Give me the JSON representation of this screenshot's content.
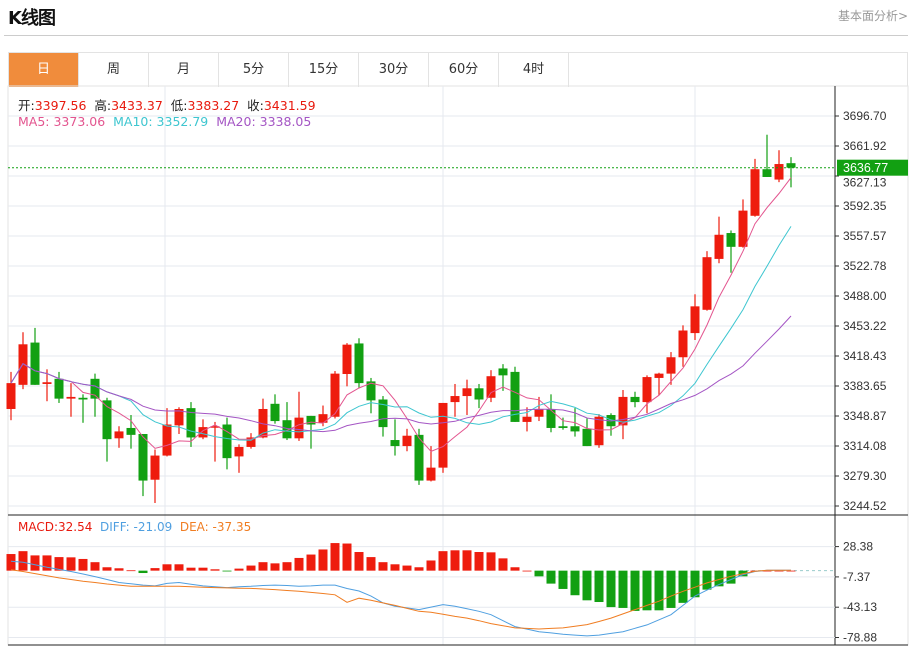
{
  "header": {
    "title": "K线图",
    "link": "基本面分析>"
  },
  "tabs": [
    {
      "label": "日",
      "active": true
    },
    {
      "label": "周"
    },
    {
      "label": "月"
    },
    {
      "label": "5分"
    },
    {
      "label": "15分"
    },
    {
      "label": "30分"
    },
    {
      "label": "60分"
    },
    {
      "label": "4时"
    }
  ],
  "ohlc_info": {
    "open_label": "开:",
    "open": "3397.56",
    "high_label": "高:",
    "high": "3433.37",
    "low_label": "低:",
    "low": "3383.27",
    "close_label": "收:",
    "close": "3431.59"
  },
  "ma_info": {
    "ma5": "MA5: 3373.06",
    "ma10": "MA10: 3352.79",
    "ma20": "MA20: 3338.05"
  },
  "macd_info": {
    "macd": "MACD:32.54",
    "diff": "DIFF: -21.09",
    "dea": "DEA: -37.35"
  },
  "colors": {
    "up": "#ee1c0e",
    "down": "#12a012",
    "ma5": "#e3558f",
    "ma10": "#3ec6d0",
    "ma20": "#a455c4",
    "diff": "#4f9fe0",
    "dea": "#f07d22",
    "accent": "#f08c3c"
  },
  "chart_data": [
    {
      "type": "candlestick",
      "price_axis_ticks": [
        "3696.70",
        "3661.92",
        "3627.13",
        "3592.35",
        "3557.57",
        "3522.78",
        "3488.00",
        "3453.22",
        "3418.43",
        "3383.65",
        "3348.87",
        "3314.08",
        "3279.30",
        "3244.52"
      ],
      "ylim": [
        3244.52,
        3696.7
      ],
      "grid": true,
      "last_price": "3636.77",
      "ohlc_fields": [
        "open",
        "close",
        "high",
        "low"
      ],
      "candles": [
        [
          3357,
          3387,
          3400,
          3344
        ],
        [
          3385,
          3432,
          3446,
          3380
        ],
        [
          3434,
          3385,
          3451,
          3385
        ],
        [
          3386,
          3388,
          3403,
          3366
        ],
        [
          3392,
          3369,
          3400,
          3364
        ],
        [
          3369,
          3371,
          3387,
          3348
        ],
        [
          3370,
          3368,
          3374,
          3341
        ],
        [
          3392,
          3369,
          3398,
          3348
        ],
        [
          3367,
          3322,
          3370,
          3296
        ],
        [
          3323,
          3331,
          3337,
          3312
        ],
        [
          3335,
          3327,
          3350,
          3311
        ],
        [
          3328,
          3274,
          3328,
          3256
        ],
        [
          3275,
          3303,
          3310,
          3248
        ],
        [
          3303,
          3339,
          3358,
          3302
        ],
        [
          3338,
          3357,
          3359,
          3328
        ],
        [
          3358,
          3324,
          3365,
          3313
        ],
        [
          3324,
          3336,
          3345,
          3322
        ],
        [
          3336,
          3337,
          3342,
          3296
        ],
        [
          3339,
          3300,
          3347,
          3287
        ],
        [
          3302,
          3313,
          3316,
          3283
        ],
        [
          3313,
          3324,
          3329,
          3311
        ],
        [
          3324,
          3357,
          3369,
          3323
        ],
        [
          3363,
          3343,
          3374,
          3340
        ],
        [
          3344,
          3323,
          3365,
          3321
        ],
        [
          3323,
          3347,
          3377,
          3320
        ],
        [
          3349,
          3339,
          3349,
          3311
        ],
        [
          3341,
          3351,
          3361,
          3337
        ],
        [
          3348,
          3398,
          3401,
          3346
        ],
        [
          3397.56,
          3431.59,
          3433.37,
          3383.27
        ],
        [
          3433,
          3387,
          3439,
          3381
        ],
        [
          3389,
          3367,
          3393,
          3352
        ],
        [
          3368,
          3336,
          3372,
          3325
        ],
        [
          3321,
          3314,
          3345,
          3303
        ],
        [
          3314,
          3326,
          3334,
          3308
        ],
        [
          3327,
          3274,
          3334,
          3269
        ],
        [
          3274,
          3289,
          3314,
          3273
        ],
        [
          3289,
          3364,
          3364,
          3283
        ],
        [
          3365,
          3372,
          3386,
          3348
        ],
        [
          3372,
          3381,
          3391,
          3350
        ],
        [
          3381,
          3368,
          3386,
          3358
        ],
        [
          3370,
          3395,
          3402,
          3365
        ],
        [
          3404,
          3396,
          3409,
          3378
        ],
        [
          3400,
          3342,
          3406,
          3342
        ],
        [
          3342,
          3348,
          3359,
          3331
        ],
        [
          3348,
          3357,
          3371,
          3343
        ],
        [
          3357,
          3335,
          3374,
          3330
        ],
        [
          3337,
          3335,
          3347,
          3333
        ],
        [
          3337,
          3331,
          3358,
          3325
        ],
        [
          3334,
          3314,
          3346,
          3314
        ],
        [
          3315,
          3348,
          3351,
          3312
        ],
        [
          3350,
          3337,
          3352,
          3326
        ],
        [
          3338,
          3371,
          3379,
          3322
        ],
        [
          3371,
          3365,
          3377,
          3359
        ],
        [
          3365,
          3394,
          3396,
          3352
        ],
        [
          3393,
          3398,
          3399,
          3373
        ],
        [
          3398,
          3417,
          3423,
          3385
        ],
        [
          3417,
          3448,
          3454,
          3406
        ],
        [
          3445,
          3476,
          3490,
          3437
        ],
        [
          3472,
          3533,
          3540,
          3471
        ],
        [
          3531,
          3559,
          3580,
          3526
        ],
        [
          3561,
          3545,
          3564,
          3515
        ],
        [
          3545,
          3587,
          3600,
          3544
        ],
        [
          3581,
          3635,
          3647,
          3580
        ],
        [
          3635,
          3626,
          3675,
          3626
        ],
        [
          3623,
          3641,
          3657,
          3620
        ],
        [
          3642,
          3636.77,
          3649,
          3614
        ]
      ],
      "moving_averages": [
        "MA5",
        "MA10",
        "MA20"
      ]
    },
    {
      "type": "bar+line",
      "name": "MACD",
      "axis_ticks": [
        "28.38",
        "-7.37",
        "-43.13",
        "-78.88"
      ],
      "ylim": [
        -78.88,
        28.38
      ],
      "macd": [
        19.6,
        23,
        18,
        18,
        16,
        15.7,
        13.8,
        10,
        4,
        2.8,
        0.4,
        -2.8,
        3,
        7.5,
        7.5,
        3.5,
        3.5,
        1.6,
        -0.8,
        2.4,
        6,
        10,
        8.6,
        10,
        15,
        19,
        25,
        32.54,
        32,
        22,
        16,
        10,
        7.5,
        6,
        4,
        12,
        23,
        24,
        24,
        22,
        21.6,
        14.5,
        4,
        0,
        -6.7,
        -15.3,
        -21.6,
        -29,
        -35,
        -37,
        -43,
        -44,
        -47.5,
        -46.8,
        -46.8,
        -44,
        -38,
        -31.4,
        -22.4,
        -18.5,
        -15.3,
        -6.7,
        0,
        0,
        0,
        0
      ],
      "diff": [
        11,
        10,
        7,
        4,
        1.5,
        -1,
        -4,
        -7,
        -10.5,
        -14,
        -15.5,
        -17,
        -18,
        -15,
        -14,
        -16,
        -18,
        -19,
        -20,
        -19,
        -18.5,
        -17.5,
        -17,
        -17.5,
        -18.5,
        -18,
        -17,
        -17,
        -21.09,
        -24,
        -30,
        -38,
        -42,
        -44,
        -46,
        -43,
        -40,
        -42,
        -45,
        -48,
        -52,
        -59,
        -66,
        -69,
        -72,
        -73.5,
        -75,
        -76,
        -77,
        -76,
        -74,
        -72,
        -68,
        -64,
        -58,
        -52,
        -41,
        -30,
        -23,
        -16.5,
        -10.5,
        -4.7,
        -1,
        0.4,
        0.4,
        0.4
      ],
      "dea": [
        1,
        -1,
        -3.5,
        -6,
        -8.6,
        -10.5,
        -12.6,
        -14,
        -15.7,
        -17,
        -18.5,
        -18.5,
        -18.5,
        -18.5,
        -18.5,
        -19,
        -19.6,
        -20,
        -20.4,
        -20.7,
        -21,
        -21.7,
        -22.4,
        -23.4,
        -24.4,
        -25.7,
        -27,
        -28.5,
        -37.35,
        -32.5,
        -35,
        -38,
        -41,
        -44.5,
        -48,
        -49,
        -51.5,
        -54,
        -56,
        -59,
        -62.5,
        -65,
        -67.6,
        -68.2,
        -68.8,
        -68.2,
        -67.6,
        -65.6,
        -63.7,
        -60,
        -56,
        -51,
        -46,
        -41,
        -36,
        -30,
        -24.4,
        -19.5,
        -14.5,
        -10.5,
        -6.7,
        -3.7,
        -0.8,
        0.4,
        0.4,
        0.4
      ]
    }
  ]
}
